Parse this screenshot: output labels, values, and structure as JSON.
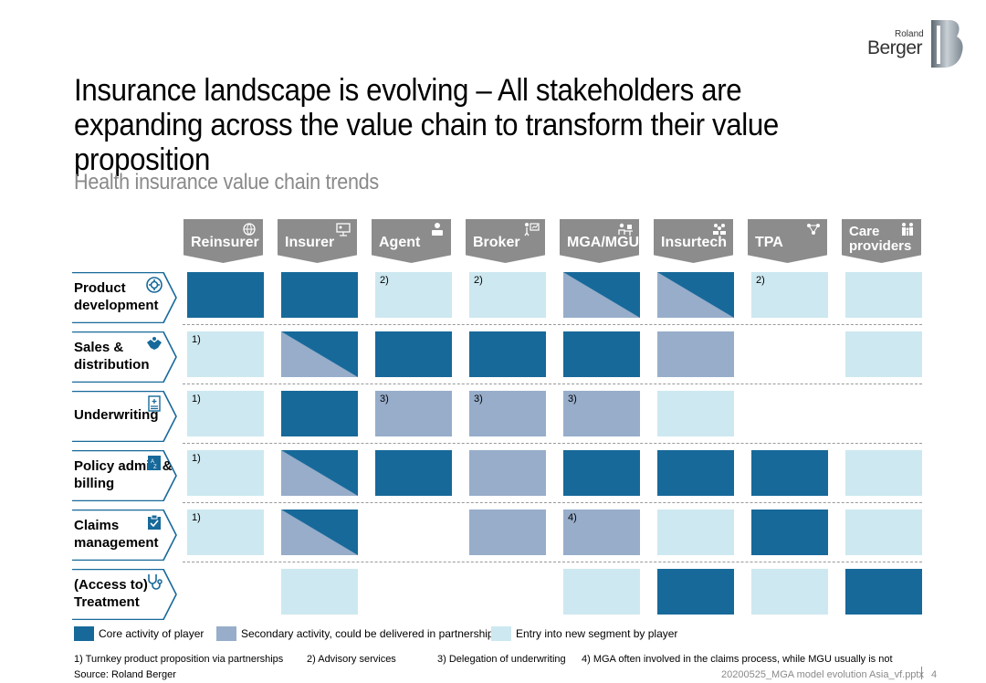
{
  "brand": {
    "line1": "Roland",
    "line2": "Berger",
    "colors": {
      "core": "#17699a",
      "secondary": "#97adca",
      "entry": "#cde8f0",
      "header": "#8c8c8c"
    }
  },
  "title": "Insurance landscape is evolving – All stakeholders are expanding across the value chain to transform their value proposition",
  "subtitle": "Health insurance value chain trends",
  "columns": [
    {
      "label": "Reinsurer",
      "icon": "globe-network-icon"
    },
    {
      "label": "Insurer",
      "icon": "presentation-board-icon"
    },
    {
      "label": "Agent",
      "icon": "person-laptop-icon"
    },
    {
      "label": "Broker",
      "icon": "presenter-chart-icon"
    },
    {
      "label": "MGA/MGU",
      "icon": "desk-worker-icon"
    },
    {
      "label": "Insurtech",
      "icon": "people-group-icon"
    },
    {
      "label": "TPA",
      "icon": "network-nodes-icon"
    },
    {
      "label": "Care providers",
      "icon": "family-icon"
    }
  ],
  "rows": [
    {
      "label": "Product development",
      "icon": "gear-cycle-icon",
      "cells": [
        {
          "type": "core"
        },
        {
          "type": "core"
        },
        {
          "type": "entry",
          "note": "2)"
        },
        {
          "type": "entry",
          "note": "2)"
        },
        {
          "type": "split"
        },
        {
          "type": "split"
        },
        {
          "type": "entry",
          "note": "2)"
        },
        {
          "type": "entry"
        }
      ]
    },
    {
      "label": "Sales & distribution",
      "icon": "handshake-icon",
      "cells": [
        {
          "type": "entry",
          "note": "1)"
        },
        {
          "type": "split"
        },
        {
          "type": "core"
        },
        {
          "type": "core"
        },
        {
          "type": "core"
        },
        {
          "type": "sec"
        },
        {
          "type": "none"
        },
        {
          "type": "entry"
        }
      ]
    },
    {
      "label": "Underwriting",
      "icon": "document-plus-icon",
      "cells": [
        {
          "type": "entry",
          "note": "1)"
        },
        {
          "type": "core"
        },
        {
          "type": "sec",
          "note": "3)"
        },
        {
          "type": "sec",
          "note": "3)"
        },
        {
          "type": "sec",
          "note": "3)"
        },
        {
          "type": "entry"
        },
        {
          "type": "none"
        },
        {
          "type": "none"
        }
      ]
    },
    {
      "label": "Policy admin & billing",
      "icon": "sort-az-icon",
      "cells": [
        {
          "type": "entry",
          "note": "1)"
        },
        {
          "type": "split"
        },
        {
          "type": "core"
        },
        {
          "type": "sec"
        },
        {
          "type": "core"
        },
        {
          "type": "core"
        },
        {
          "type": "core"
        },
        {
          "type": "entry"
        }
      ]
    },
    {
      "label": "Claims management",
      "icon": "clipboard-check-icon",
      "cells": [
        {
          "type": "entry",
          "note": "1)"
        },
        {
          "type": "split"
        },
        {
          "type": "none"
        },
        {
          "type": "sec"
        },
        {
          "type": "sec",
          "note": "4)"
        },
        {
          "type": "entry"
        },
        {
          "type": "core"
        },
        {
          "type": "entry"
        }
      ]
    },
    {
      "label": "(Access to) Treatment",
      "icon": "stethoscope-icon",
      "cells": [
        {
          "type": "none"
        },
        {
          "type": "entry"
        },
        {
          "type": "none"
        },
        {
          "type": "none"
        },
        {
          "type": "entry"
        },
        {
          "type": "core"
        },
        {
          "type": "entry"
        },
        {
          "type": "core"
        }
      ]
    }
  ],
  "legend": [
    {
      "label": "Core activity of player",
      "type": "core"
    },
    {
      "label": "Secondary activity, could be delivered in partnership",
      "type": "sec"
    },
    {
      "label": "Entry into new segment by player",
      "type": "entry"
    }
  ],
  "footnotes": [
    "1) Turnkey product proposition via partnerships",
    "2) Advisory services",
    "3) Delegation of underwriting",
    "4) MGA often involved in the claims process, while MGU usually is not"
  ],
  "source": "Source: Roland Berger",
  "filename": "20200525_MGA model evolution Asia_vf.pptx",
  "page_number": "4"
}
